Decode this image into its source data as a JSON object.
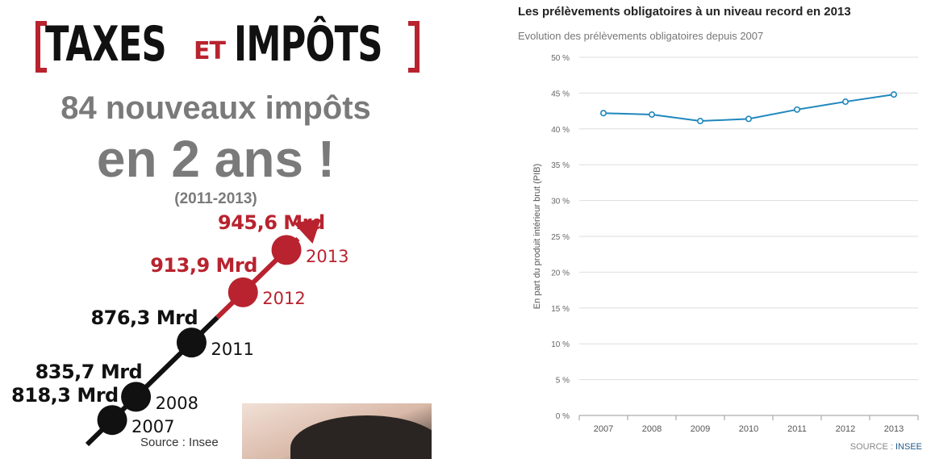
{
  "infographic": {
    "banner": {
      "word1": "TAXES",
      "word2": "ET",
      "word3": "IMPÔTS"
    },
    "headline1": "84 nouveaux impôts",
    "headline2": "en 2 ans !",
    "period": "(2011-2013)",
    "source": "Source : Insee",
    "accent_color": "#b8232f",
    "dark_color": "#111111",
    "chart_data": {
      "type": "line",
      "x": [
        "2007",
        "2008",
        "2011",
        "2012",
        "2013"
      ],
      "values": [
        818.3,
        835.7,
        876.3,
        913.9,
        945.6
      ],
      "value_labels": [
        "818,3 Mrd",
        "835,7 Mrd",
        "876,3 Mrd",
        "913,9 Mrd",
        "945,6 Mrd"
      ],
      "highlighted_years": [
        "2012",
        "2013"
      ]
    }
  },
  "chart": {
    "title": "Les prélèvements obligatoires à un niveau record en 2013",
    "subtitle": "Evolution des prélèvements obligatoires depuis 2007",
    "source_label": "SOURCE :",
    "source_link": "INSEE",
    "line_color": "#1f87bd",
    "chart_data": {
      "type": "line",
      "x": [
        "2007",
        "2008",
        "2009",
        "2010",
        "2011",
        "2012",
        "2013"
      ],
      "values": [
        42.2,
        42.0,
        41.1,
        41.4,
        42.7,
        43.8,
        44.8
      ],
      "ylabel": "En part du produit intérieur brut (PIB)",
      "ylim": [
        0,
        50
      ],
      "yticks": [
        "0 %",
        "5 %",
        "10 %",
        "15 %",
        "20 %",
        "25 %",
        "30 %",
        "35 %",
        "40 %",
        "45 %",
        "50 %"
      ],
      "grid": true
    }
  }
}
